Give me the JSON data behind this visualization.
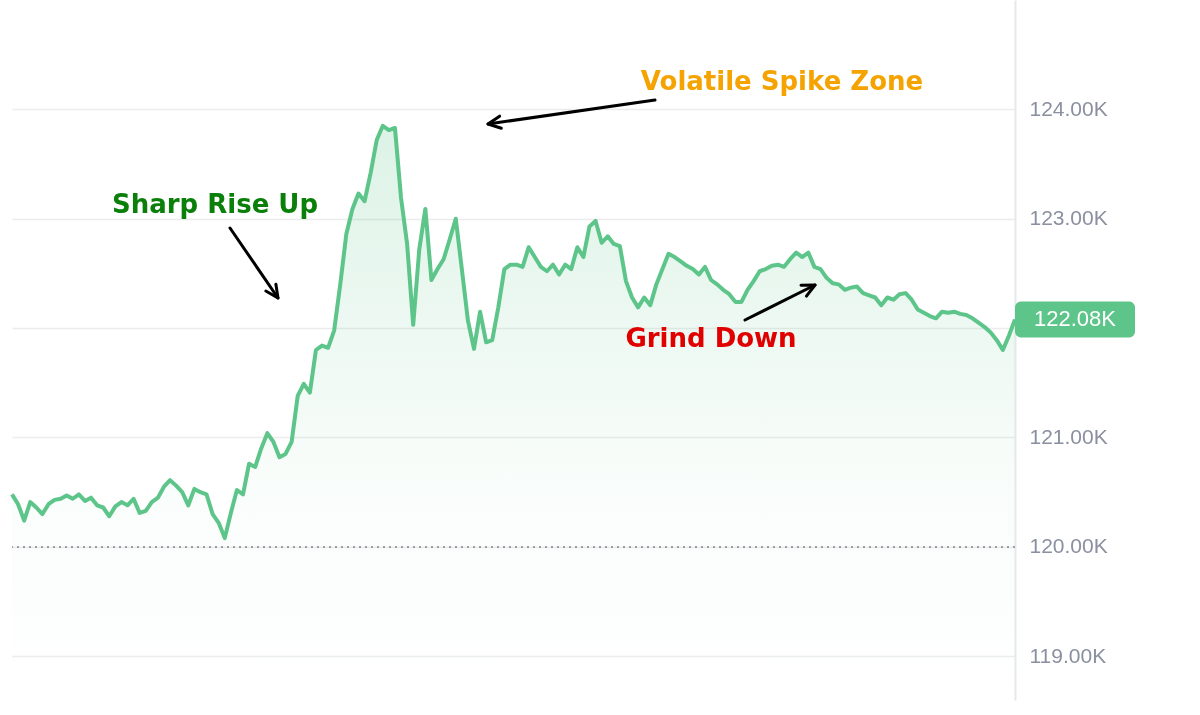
{
  "chart_data": {
    "type": "area",
    "categories": [
      null,
      null,
      null,
      null,
      null,
      null,
      null,
      null,
      null,
      null,
      null,
      null,
      null,
      null,
      null,
      null,
      null,
      null,
      null,
      null,
      null,
      null,
      null,
      null,
      null,
      null,
      null,
      null,
      null,
      null,
      null,
      null,
      null,
      null,
      null,
      null,
      null,
      null,
      null,
      null,
      null,
      null,
      null,
      null,
      null,
      null,
      null,
      null,
      null,
      null,
      null,
      null,
      null,
      null,
      null,
      null,
      null,
      null,
      null,
      null,
      null,
      null,
      null,
      null,
      null,
      null,
      null,
      null,
      null,
      null,
      null,
      null,
      null,
      null,
      null,
      null,
      null,
      null,
      null,
      null,
      null,
      null,
      null,
      null,
      null,
      null,
      null,
      null,
      null,
      null,
      null,
      null,
      null,
      null,
      null,
      null,
      null,
      null,
      null,
      null,
      null,
      null,
      null,
      null,
      null,
      null,
      null,
      null,
      null,
      null,
      null,
      null,
      null,
      null,
      null,
      null,
      null,
      null,
      null,
      null,
      null,
      null,
      null,
      null,
      null,
      null,
      null,
      null,
      null,
      null,
      null,
      null,
      null,
      null,
      null,
      null,
      null,
      null,
      null,
      null,
      null,
      null,
      null,
      null,
      null,
      null,
      null,
      null,
      null,
      null,
      null,
      null,
      null,
      null,
      null,
      null,
      null,
      null,
      null,
      null,
      null,
      null,
      null,
      null,
      null,
      null
    ],
    "series": [
      {
        "color": "#5dc58a",
        "values": [
          120.48,
          120.39,
          120.24,
          120.41,
          120.36,
          120.3,
          120.39,
          120.43,
          120.44,
          120.47,
          120.44,
          120.48,
          120.42,
          120.45,
          120.38,
          120.36,
          120.28,
          120.37,
          120.41,
          120.38,
          120.44,
          120.31,
          120.33,
          120.41,
          120.45,
          120.55,
          120.61,
          120.56,
          120.5,
          120.38,
          120.53,
          120.5,
          120.48,
          120.3,
          120.22,
          120.08,
          120.31,
          120.52,
          120.48,
          120.76,
          120.73,
          120.9,
          121.04,
          120.96,
          120.82,
          120.85,
          120.96,
          121.38,
          121.49,
          121.41,
          121.8,
          121.84,
          121.82,
          121.98,
          122.4,
          122.86,
          123.09,
          123.23,
          123.16,
          123.42,
          123.72,
          123.85,
          123.81,
          123.83,
          123.19,
          122.77,
          122.03,
          122.72,
          123.09,
          122.44,
          122.54,
          122.63,
          122.81,
          123.0,
          122.54,
          122.07,
          121.81,
          122.15,
          121.87,
          121.89,
          122.19,
          122.54,
          122.58,
          122.58,
          122.56,
          122.74,
          122.65,
          122.56,
          122.52,
          122.58,
          122.49,
          122.58,
          122.54,
          122.74,
          122.65,
          122.93,
          122.98,
          122.78,
          122.84,
          122.77,
          122.75,
          122.43,
          122.28,
          122.19,
          122.28,
          122.21,
          122.4,
          122.54,
          122.68,
          122.65,
          122.61,
          122.57,
          122.54,
          122.49,
          122.56,
          122.44,
          122.4,
          122.35,
          122.31,
          122.24,
          122.24,
          122.35,
          122.43,
          122.52,
          122.54,
          122.57,
          122.58,
          122.56,
          122.63,
          122.69,
          122.65,
          122.69,
          122.56,
          122.54,
          122.46,
          122.41,
          122.4,
          122.35,
          122.37,
          122.38,
          122.32,
          122.3,
          122.28,
          122.21,
          122.28,
          122.26,
          122.31,
          122.32,
          122.26,
          122.17,
          122.14,
          122.11,
          122.09,
          122.15,
          122.14,
          122.15,
          122.13,
          122.12,
          122.09,
          122.05,
          122.01,
          121.96,
          121.89,
          121.8,
          121.93,
          122.08
        ]
      }
    ],
    "ylim": [
      118.6,
      125.0
    ],
    "yticks": [
      {
        "value": 119,
        "label": "119.00K"
      },
      {
        "value": 120,
        "label": "120.00K"
      },
      {
        "value": 121,
        "label": "121.00K"
      },
      {
        "value": 122,
        "label": null
      },
      {
        "value": 123,
        "label": "123.00K"
      },
      {
        "value": 124,
        "label": "124.00K"
      }
    ],
    "grid": "y",
    "tick_labels": "y",
    "ref_lines": [
      {
        "axis": "y",
        "value": 120,
        "color": "#9aa0a6",
        "line_style": "dotted"
      }
    ],
    "annotations": [
      "Volatile Spike Zone",
      "Sharp Rise Up",
      "Grind Down",
      "122.08K"
    ]
  }
}
